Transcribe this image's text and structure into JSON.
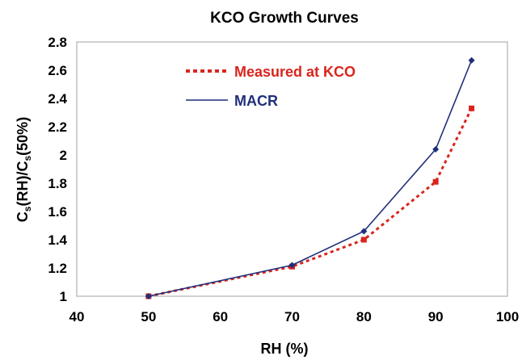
{
  "chart_data": {
    "type": "line",
    "title": "KCO Growth Curves",
    "xlabel": "RH (%)",
    "ylabel": "Cs(RH)/Cs(50%)",
    "xlim": [
      40,
      100
    ],
    "ylim": [
      1,
      2.8
    ],
    "x_ticks": [
      "40",
      "50",
      "60",
      "70",
      "80",
      "90",
      "100"
    ],
    "y_ticks": [
      "1",
      "1.2",
      "1.4",
      "1.6",
      "1.8",
      "2",
      "2.2",
      "2.4",
      "2.6",
      "2.8"
    ],
    "grid": false,
    "legend_position": "top-left",
    "series": [
      {
        "name": "Measured at KCO",
        "color": "#d9251d",
        "line_style": "dotted",
        "marker": "square",
        "x": [
          50,
          70,
          80,
          90,
          95
        ],
        "y": [
          1.0,
          1.21,
          1.4,
          1.81,
          2.33
        ]
      },
      {
        "name": "MACR",
        "color": "#1f2f7a",
        "line_style": "solid",
        "marker": "diamond",
        "x": [
          50,
          70,
          80,
          90,
          95
        ],
        "y": [
          1.0,
          1.22,
          1.46,
          2.04,
          2.67
        ]
      }
    ]
  }
}
